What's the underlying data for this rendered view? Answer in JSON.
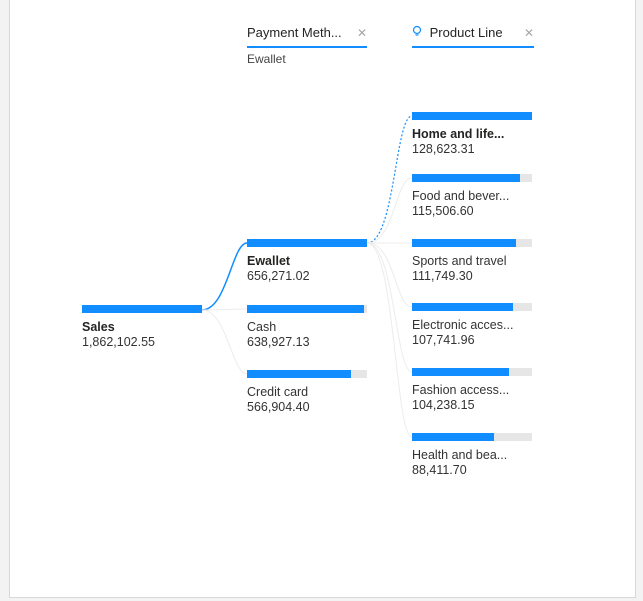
{
  "headers": {
    "payment_method": {
      "label": "Payment Meth...",
      "close_icon": "close-icon",
      "selected_value": "Ewallet"
    },
    "product_line": {
      "label": "Product Line",
      "icon": "lightbulb-icon",
      "close_icon": "close-icon"
    }
  },
  "root": {
    "label": "Sales",
    "value": "1,862,102.55",
    "fraction": 1.0
  },
  "payment_nodes": [
    {
      "label": "Ewallet",
      "value": "656,271.02",
      "fraction": 1.0,
      "selected": true
    },
    {
      "label": "Cash",
      "value": "638,927.13",
      "fraction": 0.974,
      "selected": false
    },
    {
      "label": "Credit card",
      "value": "566,904.40",
      "fraction": 0.864,
      "selected": false
    }
  ],
  "product_nodes": [
    {
      "label": "Home and life...",
      "value": "128,623.31",
      "fraction": 1.0,
      "selected": true
    },
    {
      "label": "Food and bever...",
      "value": "115,506.60",
      "fraction": 0.898,
      "selected": false
    },
    {
      "label": "Sports and travel",
      "value": "111,749.30",
      "fraction": 0.869,
      "selected": false
    },
    {
      "label": "Electronic acces...",
      "value": "107,741.96",
      "fraction": 0.838,
      "selected": false
    },
    {
      "label": "Fashion access...",
      "value": "104,238.15",
      "fraction": 0.81,
      "selected": false
    },
    {
      "label": "Health and bea...",
      "value": "88,411.70",
      "fraction": 0.687,
      "selected": false
    }
  ],
  "colors": {
    "accent": "#118dff",
    "track": "#e6e6e6",
    "link": "#e8e8e8"
  }
}
